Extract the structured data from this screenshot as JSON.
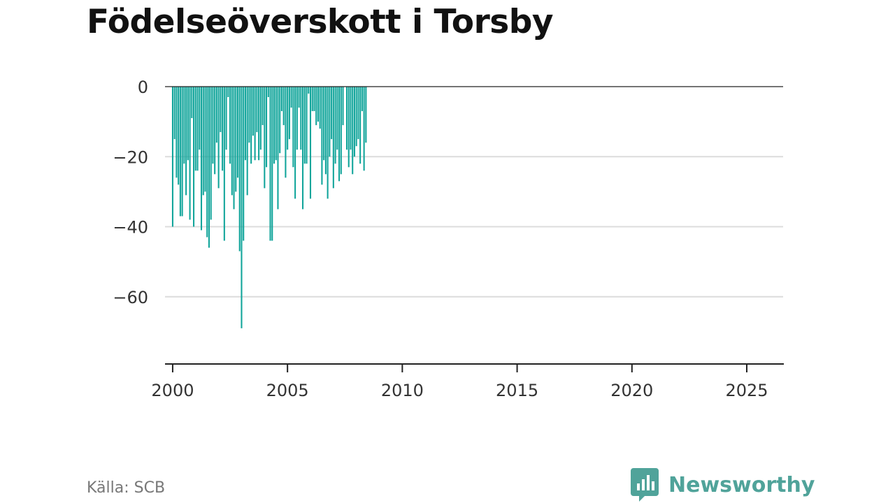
{
  "brand": {
    "name": "Newsworthy",
    "logo_icon": "newsworthy-logo-icon",
    "color": "#50a39a"
  },
  "source": "Källa: SCB",
  "chart_data": {
    "type": "bar",
    "title": "Födelseöverskott i Torsby",
    "xlabel": "",
    "ylabel": "",
    "x_unit": "month",
    "x_start": "2000-01",
    "x_end": "2025-05",
    "xlim": [
      "1999-09",
      "2026-08"
    ],
    "x_ticks": [
      "2000",
      "2005",
      "2010",
      "2015",
      "2020",
      "2025"
    ],
    "ylim": [
      -79,
      0
    ],
    "y_ticks": [
      0,
      -20,
      -40,
      -60
    ],
    "y_tick_labels": [
      "0",
      "−20",
      "−40",
      "−60"
    ],
    "grid": true,
    "bar_color": "#12a59b",
    "values": [
      -40,
      -15,
      -26,
      -28,
      -37,
      -37,
      -22,
      -31,
      -21,
      -38,
      -9,
      -40,
      -24,
      -24,
      -18,
      -41,
      -31,
      -30,
      -43,
      -46,
      -38,
      -22,
      -25,
      -16,
      -29,
      -13,
      -24,
      -44,
      -18,
      -3,
      -22,
      -31,
      -35,
      -30,
      -26,
      -47,
      -69,
      -44,
      -21,
      -31,
      -16,
      -22,
      -14,
      -21,
      -13,
      -21,
      -18,
      -11,
      -29,
      -23,
      -3,
      -44,
      -44,
      -22,
      -21,
      -35,
      -19,
      -7,
      -11,
      -26,
      -18,
      -15,
      -6,
      -23,
      -32,
      -18,
      -6,
      -18,
      -35,
      -22,
      -22,
      -2,
      -32,
      -7,
      -7,
      -11,
      -10,
      -12,
      -28,
      -21,
      -25,
      -32,
      -20,
      -15,
      -29,
      -22,
      -18,
      -27,
      -25,
      -11,
      null,
      -18,
      -23,
      -18,
      -25,
      -20,
      -17,
      -15,
      -22,
      -7,
      -24,
      -16
    ]
  }
}
